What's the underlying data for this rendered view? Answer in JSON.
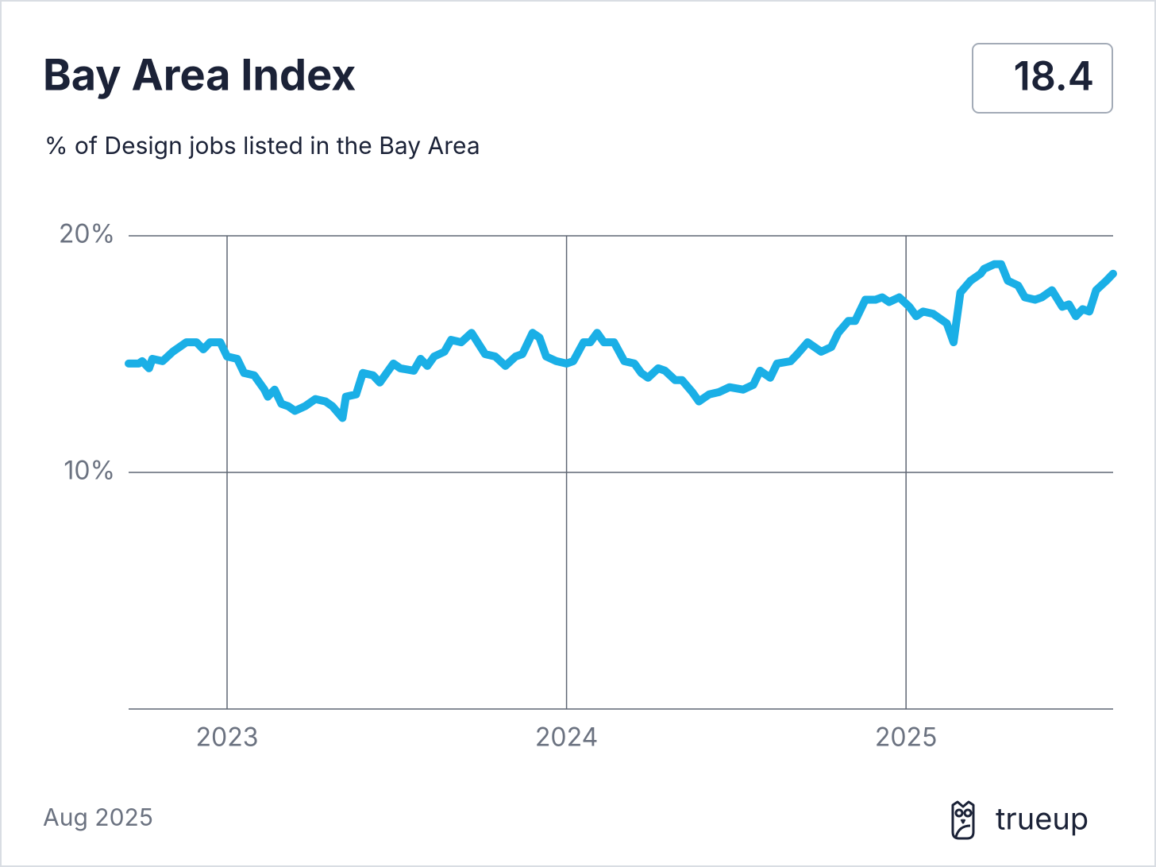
{
  "chart_data": {
    "type": "line",
    "title": "Bay Area Index",
    "headline": "18.4",
    "subtitle": "% of Design jobs listed in the Bay Area",
    "footer": "Aug 2025",
    "brand": "trueup",
    "color": "#1aafe6",
    "grid": true,
    "xlim": [
      2022.71,
      2025.61
    ],
    "xticks": [
      2023,
      2024,
      2025
    ],
    "ylim": [
      0,
      20
    ],
    "yticks": [
      {
        "value": 10,
        "label": "10%"
      },
      {
        "value": 20,
        "label": "20%"
      }
    ],
    "x": [
      2022.71,
      2022.74,
      2022.75,
      2022.77,
      2022.78,
      2022.81,
      2022.84,
      2022.88,
      2022.91,
      2022.93,
      2022.95,
      2022.98,
      2023.0,
      2023.03,
      2023.05,
      2023.08,
      2023.11,
      2023.12,
      2023.14,
      2023.16,
      2023.18,
      2023.2,
      2023.23,
      2023.26,
      2023.29,
      2023.31,
      2023.34,
      2023.35,
      2023.38,
      2023.4,
      2023.43,
      2023.45,
      2023.49,
      2023.51,
      2023.55,
      2023.57,
      2023.59,
      2023.61,
      2023.64,
      2023.66,
      2023.69,
      2023.72,
      2023.76,
      2023.79,
      2023.82,
      2023.85,
      2023.87,
      2023.9,
      2023.92,
      2023.94,
      2023.97,
      2024.0,
      2024.02,
      2024.05,
      2024.07,
      2024.09,
      2024.11,
      2024.14,
      2024.17,
      2024.2,
      2024.22,
      2024.24,
      2024.27,
      2024.29,
      2024.32,
      2024.34,
      2024.37,
      2024.39,
      2024.42,
      2024.45,
      2024.48,
      2024.52,
      2024.55,
      2024.57,
      2024.6,
      2024.62,
      2024.66,
      2024.68,
      2024.71,
      2024.75,
      2024.78,
      2024.8,
      2024.83,
      2024.85,
      2024.88,
      2024.91,
      2024.93,
      2024.95,
      2024.98,
      2025.01,
      2025.03,
      2025.05,
      2025.08,
      2025.12,
      2025.14,
      2025.16,
      2025.19,
      2025.22,
      2025.23,
      2025.26,
      2025.28,
      2025.3,
      2025.33,
      2025.35,
      2025.38,
      2025.4,
      2025.43,
      2025.46,
      2025.48,
      2025.5,
      2025.52,
      2025.54,
      2025.56,
      2025.59,
      2025.61
    ],
    "values": [
      14.6,
      14.6,
      14.7,
      14.4,
      14.8,
      14.7,
      15.1,
      15.5,
      15.5,
      15.2,
      15.5,
      15.5,
      14.9,
      14.8,
      14.2,
      14.1,
      13.5,
      13.2,
      13.5,
      12.9,
      12.8,
      12.6,
      12.8,
      13.1,
      13.0,
      12.8,
      12.3,
      13.2,
      13.3,
      14.2,
      14.1,
      13.8,
      14.6,
      14.4,
      14.3,
      14.8,
      14.5,
      14.9,
      15.1,
      15.6,
      15.5,
      15.9,
      15.0,
      14.9,
      14.5,
      14.9,
      15.0,
      15.9,
      15.7,
      14.9,
      14.7,
      14.6,
      14.7,
      15.5,
      15.5,
      15.9,
      15.5,
      15.5,
      14.7,
      14.6,
      14.2,
      14.0,
      14.4,
      14.3,
      13.9,
      13.9,
      13.4,
      13.0,
      13.3,
      13.4,
      13.6,
      13.5,
      13.7,
      14.3,
      14.0,
      14.6,
      14.7,
      15.0,
      15.5,
      15.1,
      15.3,
      15.9,
      16.4,
      16.4,
      17.3,
      17.3,
      17.4,
      17.2,
      17.4,
      17.0,
      16.6,
      16.8,
      16.7,
      16.3,
      15.5,
      17.6,
      18.1,
      18.4,
      18.6,
      18.8,
      18.8,
      18.1,
      17.9,
      17.4,
      17.3,
      17.4,
      17.7,
      17.0,
      17.1,
      16.6,
      16.9,
      16.8,
      17.7,
      18.1,
      18.4
    ]
  }
}
